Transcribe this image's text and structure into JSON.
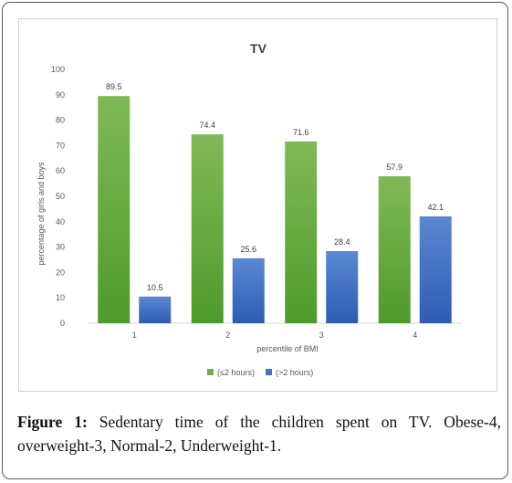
{
  "chart_data": {
    "type": "bar",
    "title": "TV",
    "xlabel": "percentile of BMI",
    "ylabel": "percentage of girls and boys",
    "categories": [
      "1",
      "2",
      "3",
      "4"
    ],
    "series": [
      {
        "name": "(≤2 hours)",
        "values": [
          89.5,
          74.4,
          71.6,
          57.9
        ],
        "color": "#70ad47"
      },
      {
        "name": "(>2 hours)",
        "values": [
          10.5,
          25.6,
          28.4,
          42.1
        ],
        "color": "#4472c4"
      }
    ],
    "ylim": [
      0,
      100
    ],
    "yticks": [
      "0",
      "10",
      "20",
      "30",
      "40",
      "50",
      "60",
      "70",
      "80",
      "90",
      "100"
    ],
    "data_labels": true,
    "grid": false,
    "legend_position": "bottom"
  },
  "caption": {
    "label": "Figure 1:",
    "text": " Sedentary time of the children spent on TV. Obese-4, overweight-3, Normal-2, Underweight-1."
  }
}
